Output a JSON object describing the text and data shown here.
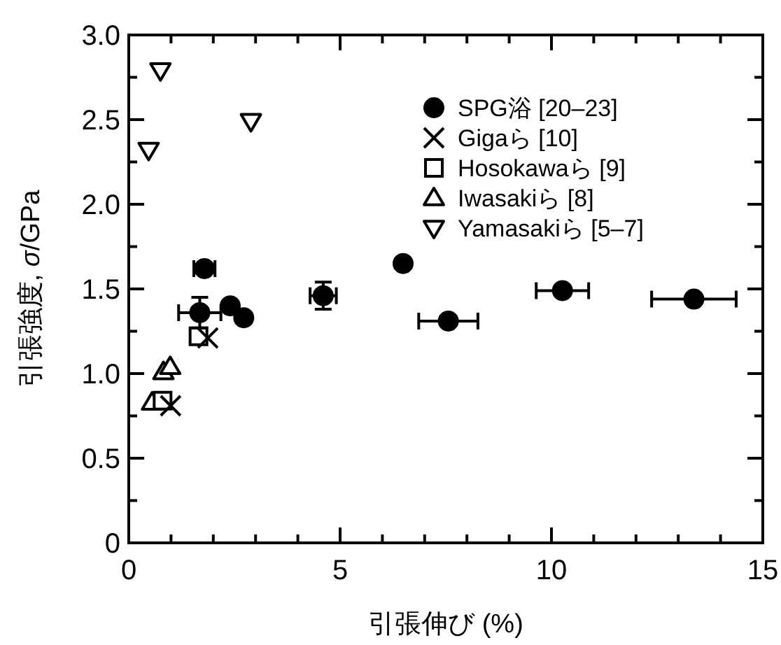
{
  "chart_data": {
    "type": "scatter",
    "xlabel": "引張伸び (%)",
    "ylabel": "引張強度, *σ*/GPa",
    "xlim": [
      0,
      15
    ],
    "ylim": [
      0,
      3
    ],
    "xticks": [
      0,
      {
        "value": 1,
        "label": null
      },
      {
        "value": 2,
        "label": null
      },
      {
        "value": 3,
        "label": null
      },
      {
        "value": 4,
        "label": null
      },
      5,
      {
        "value": 6,
        "label": null
      },
      {
        "value": 7,
        "label": null
      },
      {
        "value": 8,
        "label": null
      },
      {
        "value": 9,
        "label": null
      },
      10,
      {
        "value": 11,
        "label": null
      },
      {
        "value": 12,
        "label": null
      },
      {
        "value": 13,
        "label": null
      },
      {
        "value": 14,
        "label": null
      },
      15
    ],
    "yticks": [
      0,
      {
        "value": 0.25,
        "label": null
      },
      0.5,
      {
        "value": 0.75,
        "label": null
      },
      {
        "value": 1,
        "label": "1.0"
      },
      {
        "value": 1.25,
        "label": null
      },
      1.5,
      {
        "value": 1.75,
        "label": null
      },
      {
        "value": 2,
        "label": "2.0"
      },
      {
        "value": 2.25,
        "label": null
      },
      2.5,
      {
        "value": 2.75,
        "label": null
      },
      {
        "value": 3,
        "label": "3.0"
      }
    ],
    "legend": "top right",
    "series": [
      {
        "name": "SPG浴 [20–23]",
        "color": "#000000",
        "marker": "circle",
        "x": [
          1.79,
          1.68,
          2.4,
          2.72,
          4.6,
          6.49,
          7.56,
          10.26,
          13.37
        ],
        "values": [
          1.62,
          1.36,
          1.4,
          1.33,
          1.46,
          1.65,
          1.31,
          1.49,
          1.44
        ],
        "xerrors": [
          0.25,
          0.5,
          null,
          null,
          0.31,
          null,
          0.7,
          0.62,
          1.0
        ],
        "errors": [
          null,
          0.09,
          null,
          null,
          0.08,
          null,
          null,
          null,
          null
        ]
      },
      {
        "name": "Gigaら [10]",
        "color": "#000000",
        "marker": "cross",
        "x": [
          1.87,
          0.99
        ],
        "values": [
          1.21,
          0.81
        ]
      },
      {
        "name": "Hosokawaら [9]",
        "color": "#000000",
        "marker": "square",
        "x": [
          1.65,
          0.8
        ],
        "values": [
          1.22,
          0.84
        ]
      },
      {
        "name": "Iwasakiら [8]",
        "color": "#000000",
        "marker": "triangle",
        "x": [
          0.82,
          0.98,
          0.55
        ],
        "values": [
          1.01,
          1.04,
          0.83
        ]
      },
      {
        "name": "Yamasakiら [5–7]",
        "color": "#000000",
        "marker": "triangle-down",
        "x": [
          0.75,
          0.47,
          2.89
        ],
        "values": [
          2.79,
          2.32,
          2.49
        ]
      }
    ]
  }
}
